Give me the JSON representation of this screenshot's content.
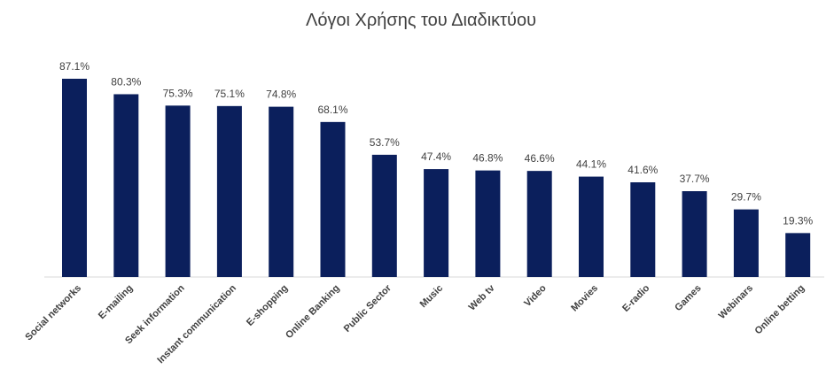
{
  "chart_data": {
    "type": "bar",
    "title": "Λόγοι Χρήσης του Διαδικτύου",
    "categories": [
      "Social networks",
      "E-mailing",
      "Seek information",
      "Instant communication",
      "E-shopping",
      "Online Banking",
      "Public Sector",
      "Music",
      "Web tv",
      "Video",
      "Movies",
      "E-radio",
      "Games",
      "Webinars",
      "Online betting"
    ],
    "values": [
      87.1,
      80.3,
      75.3,
      75.1,
      74.8,
      68.1,
      53.7,
      47.4,
      46.8,
      46.6,
      44.1,
      41.6,
      37.7,
      29.7,
      19.3
    ],
    "value_labels": [
      "87.1%",
      "80.3%",
      "75.3%",
      "75.1%",
      "74.8%",
      "68.1%",
      "53.7%",
      "47.4%",
      "46.8%",
      "46.6%",
      "44.1%",
      "41.6%",
      "37.7%",
      "29.7%",
      "19.3%"
    ],
    "color": "#0b1f5c"
  }
}
